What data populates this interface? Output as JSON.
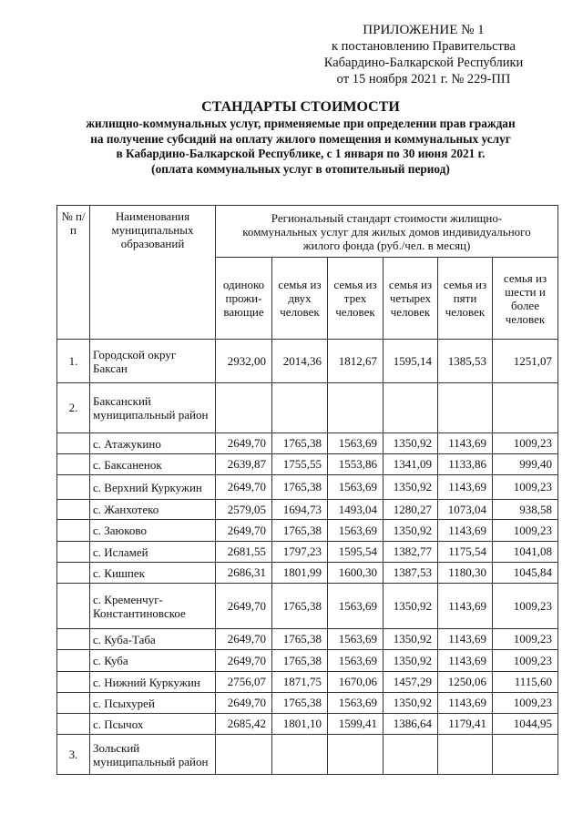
{
  "appendix": {
    "line1": "ПРИЛОЖЕНИЕ № 1",
    "line2": "к постановлению Правительства",
    "line3": "Кабардино-Балкарской Республики",
    "line4": "от 15 ноября 2021 г. № 229-ПП"
  },
  "title": {
    "main": "СТАНДАРТЫ СТОИМОСТИ",
    "line1": "жилищно-коммунальных услуг, применяемые при определении прав граждан",
    "line2": "на получение субсидий на оплату жилого помещения и коммунальных услуг",
    "line3": "в Кабардино-Балкарской Республике, с 1 января по 30 июня 2021 г.",
    "line4": "(оплата коммунальных услуг в отопительный период)"
  },
  "table": {
    "col_num": "№ п/п",
    "col_name": "Наименования муниципальных образований",
    "col_group": "Региональный стандарт стоимости жилищно-коммунальных услуг для жилых домов индивидуального жилого фонда (руб./чел. в месяц)",
    "subcols": [
      "одиноко прожи-вающие",
      "семья из двух человек",
      "семья из трех человек",
      "семья из четырех человек",
      "семья из пяти человек",
      "семья из шести и более человек"
    ],
    "rows": [
      {
        "idx": "1.",
        "name": "Городской округ Баксан",
        "v": [
          "2932,00",
          "2014,36",
          "1812,67",
          "1595,14",
          "1385,53",
          "1251,07"
        ]
      },
      {
        "idx": "2.",
        "name": "Баксанский муниципальный район",
        "v": [
          "",
          "",
          "",
          "",
          "",
          ""
        ]
      },
      {
        "idx": "",
        "name": "с. Атажукино",
        "v": [
          "2649,70",
          "1765,38",
          "1563,69",
          "1350,92",
          "1143,69",
          "1009,23"
        ]
      },
      {
        "idx": "",
        "name": "с. Баксаненок",
        "v": [
          "2639,87",
          "1755,55",
          "1553,86",
          "1341,09",
          "1133,86",
          "999,40"
        ]
      },
      {
        "idx": "",
        "name": "с. Верхний Куркужин",
        "v": [
          "2649,70",
          "1765,38",
          "1563,69",
          "1350,92",
          "1143,69",
          "1009,23"
        ]
      },
      {
        "idx": "",
        "name": "с. Жанхотеко",
        "v": [
          "2579,05",
          "1694,73",
          "1493,04",
          "1280,27",
          "1073,04",
          "938,58"
        ]
      },
      {
        "idx": "",
        "name": "с. Заюково",
        "v": [
          "2649,70",
          "1765,38",
          "1563,69",
          "1350,92",
          "1143,69",
          "1009,23"
        ]
      },
      {
        "idx": "",
        "name": "с. Исламей",
        "v": [
          "2681,55",
          "1797,23",
          "1595,54",
          "1382,77",
          "1175,54",
          "1041,08"
        ]
      },
      {
        "idx": "",
        "name": "с. Кишпек",
        "v": [
          "2686,31",
          "1801,99",
          "1600,30",
          "1387,53",
          "1180,30",
          "1045,84"
        ]
      },
      {
        "idx": "",
        "name": "с. Кременчуг-Константиновское",
        "v": [
          "2649,70",
          "1765,38",
          "1563,69",
          "1350,92",
          "1143,69",
          "1009,23"
        ]
      },
      {
        "idx": "",
        "name": "с. Куба-Таба",
        "v": [
          "2649,70",
          "1765,38",
          "1563,69",
          "1350,92",
          "1143,69",
          "1009,23"
        ]
      },
      {
        "idx": "",
        "name": "с. Куба",
        "v": [
          "2649,70",
          "1765,38",
          "1563,69",
          "1350,92",
          "1143,69",
          "1009,23"
        ]
      },
      {
        "idx": "",
        "name": "с. Нижний Куркужин",
        "v": [
          "2756,07",
          "1871,75",
          "1670,06",
          "1457,29",
          "1250,06",
          "1115,60"
        ]
      },
      {
        "idx": "",
        "name": "с. Псыхурей",
        "v": [
          "2649,70",
          "1765,38",
          "1563,69",
          "1350,92",
          "1143,69",
          "1009,23"
        ]
      },
      {
        "idx": "",
        "name": "с. Псычох",
        "v": [
          "2685,42",
          "1801,10",
          "1599,41",
          "1386,64",
          "1179,41",
          "1044,95"
        ]
      },
      {
        "idx": "3.",
        "name": "Зольский муниципальный район",
        "v": [
          "",
          "",
          "",
          "",
          "",
          ""
        ]
      }
    ]
  }
}
